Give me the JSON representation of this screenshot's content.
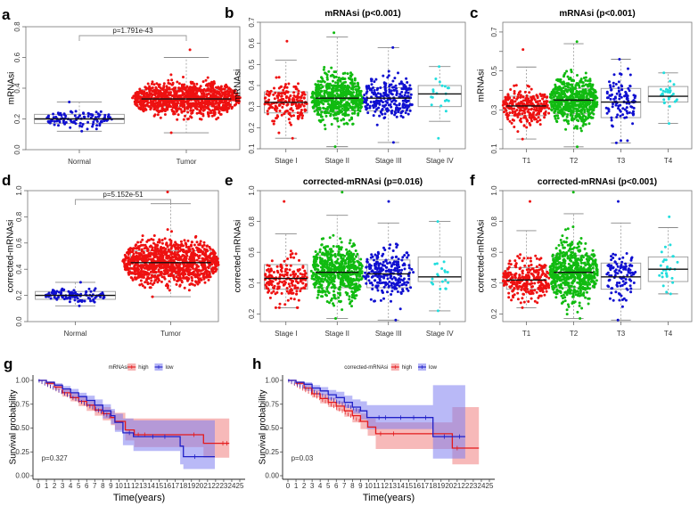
{
  "chart_data": [
    {
      "id": "a",
      "type": "beeswarm-boxplot",
      "panel_label": "a",
      "title": "",
      "ylabel": "mRNAsi",
      "ylim": [
        0.0,
        0.8
      ],
      "yticks": [
        0.0,
        0.2,
        0.4,
        0.6,
        0.8
      ],
      "ytick_labels": [
        "0.0",
        "0.2",
        "0.4",
        "0.6",
        "0.8"
      ],
      "categories": [
        "Normal",
        "Tumor"
      ],
      "annotation": "p=1.791e-43",
      "colors": [
        "#1010d0",
        "#ee1111"
      ],
      "groups": [
        {
          "name": "Normal",
          "n": 110,
          "min": 0.12,
          "q1": 0.17,
          "median": 0.2,
          "q3": 0.23,
          "max": 0.31,
          "whisker_low": 0.12,
          "whisker_high": 0.31
        },
        {
          "name": "Tumor",
          "n": 1100,
          "min": 0.11,
          "q1": 0.28,
          "median": 0.33,
          "q3": 0.39,
          "max": 0.65,
          "whisker_low": 0.11,
          "whisker_high": 0.6
        }
      ]
    },
    {
      "id": "b",
      "type": "beeswarm-boxplot",
      "panel_label": "b",
      "title": "mRNAsi (p<0.001)",
      "ylabel": "mRNAsi",
      "ylim": [
        0.1,
        0.7
      ],
      "yticks": [
        0.1,
        0.2,
        0.3,
        0.4,
        0.5,
        0.6,
        0.7
      ],
      "ytick_labels": [
        "0.1",
        "0.2",
        "0.3",
        "0.4",
        "0.5",
        "0.6",
        "0.7"
      ],
      "categories": [
        "Stage I",
        "Stage II",
        "Stage III",
        "Stage IV"
      ],
      "colors": [
        "#ee1111",
        "#11bb11",
        "#1010d0",
        "#22dddd"
      ],
      "groups": [
        {
          "name": "Stage I",
          "n": 190,
          "min": 0.15,
          "q1": 0.27,
          "median": 0.32,
          "q3": 0.37,
          "max": 0.61,
          "whisker_low": 0.15,
          "whisker_high": 0.52
        },
        {
          "name": "Stage II",
          "n": 600,
          "min": 0.11,
          "q1": 0.28,
          "median": 0.34,
          "q3": 0.4,
          "max": 0.65,
          "whisker_low": 0.11,
          "whisker_high": 0.63
        },
        {
          "name": "Stage III",
          "n": 250,
          "min": 0.13,
          "q1": 0.28,
          "median": 0.34,
          "q3": 0.39,
          "max": 0.58,
          "whisker_low": 0.13,
          "whisker_high": 0.58
        },
        {
          "name": "Stage IV",
          "n": 20,
          "min": 0.15,
          "q1": 0.3,
          "median": 0.36,
          "q3": 0.4,
          "max": 0.49,
          "whisker_low": 0.23,
          "whisker_high": 0.49
        }
      ]
    },
    {
      "id": "c",
      "type": "beeswarm-boxplot",
      "panel_label": "c",
      "title": "mRNAsi (p<0.001)",
      "ylabel": "mRNAsi",
      "ylim": [
        0.1,
        0.75
      ],
      "yticks": [
        0.1,
        0.2,
        0.3,
        0.4,
        0.5,
        0.6,
        0.7
      ],
      "ytick_labels": [
        "0.1",
        "",
        "0.3",
        "",
        "0.5",
        "",
        "0.7"
      ],
      "categories": [
        "T1",
        "T2",
        "T3",
        "T4"
      ],
      "colors": [
        "#ee1111",
        "#11bb11",
        "#1010d0",
        "#22dddd"
      ],
      "groups": [
        {
          "name": "T1",
          "n": 290,
          "min": 0.15,
          "q1": 0.27,
          "median": 0.32,
          "q3": 0.37,
          "max": 0.61,
          "whisker_low": 0.15,
          "whisker_high": 0.52
        },
        {
          "name": "T2",
          "n": 620,
          "min": 0.11,
          "q1": 0.28,
          "median": 0.35,
          "q3": 0.41,
          "max": 0.65,
          "whisker_low": 0.11,
          "whisker_high": 0.64
        },
        {
          "name": "T3",
          "n": 110,
          "min": 0.13,
          "q1": 0.26,
          "median": 0.34,
          "q3": 0.41,
          "max": 0.56,
          "whisker_low": 0.13,
          "whisker_high": 0.56
        },
        {
          "name": "T4",
          "n": 30,
          "min": 0.23,
          "q1": 0.34,
          "median": 0.37,
          "q3": 0.42,
          "max": 0.49,
          "whisker_low": 0.23,
          "whisker_high": 0.49
        }
      ]
    },
    {
      "id": "d",
      "type": "beeswarm-boxplot",
      "panel_label": "d",
      "title": "",
      "ylabel": "corrected-mRNAsi",
      "ylim": [
        0.0,
        1.0
      ],
      "yticks": [
        0.0,
        0.2,
        0.4,
        0.6,
        0.8,
        1.0
      ],
      "ytick_labels": [
        "0.0",
        "0.2",
        "0.4",
        "0.6",
        "0.8",
        "1.0"
      ],
      "categories": [
        "Normal",
        "Tumor"
      ],
      "annotation": "p=5.152e-51",
      "colors": [
        "#1010d0",
        "#ee1111"
      ],
      "groups": [
        {
          "name": "Normal",
          "n": 110,
          "min": 0.12,
          "q1": 0.17,
          "median": 0.2,
          "q3": 0.23,
          "max": 0.3,
          "whisker_low": 0.12,
          "whisker_high": 0.3
        },
        {
          "name": "Tumor",
          "n": 1100,
          "min": 0.19,
          "q1": 0.36,
          "median": 0.45,
          "q3": 0.54,
          "max": 0.99,
          "whisker_low": 0.19,
          "whisker_high": 0.9
        }
      ]
    },
    {
      "id": "e",
      "type": "beeswarm-boxplot",
      "panel_label": "e",
      "title": "corrected-mRNAsi (p=0.016)",
      "ylabel": "corrected-mRNAsi",
      "ylim": [
        0.15,
        1.0
      ],
      "yticks": [
        0.2,
        0.4,
        0.6,
        0.8,
        1.0
      ],
      "ytick_labels": [
        "0.2",
        "0.4",
        "0.6",
        "0.8",
        "1.0"
      ],
      "categories": [
        "Stage I",
        "Stage II",
        "Stage III",
        "Stage IV"
      ],
      "colors": [
        "#ee1111",
        "#11bb11",
        "#1010d0",
        "#22dddd"
      ],
      "groups": [
        {
          "name": "Stage I",
          "n": 190,
          "min": 0.24,
          "q1": 0.36,
          "median": 0.43,
          "q3": 0.52,
          "max": 0.93,
          "whisker_low": 0.24,
          "whisker_high": 0.72
        },
        {
          "name": "Stage II",
          "n": 600,
          "min": 0.17,
          "q1": 0.37,
          "median": 0.47,
          "q3": 0.58,
          "max": 0.99,
          "whisker_low": 0.17,
          "whisker_high": 0.84
        },
        {
          "name": "Stage III",
          "n": 250,
          "min": 0.16,
          "q1": 0.37,
          "median": 0.46,
          "q3": 0.55,
          "max": 0.93,
          "whisker_low": 0.16,
          "whisker_high": 0.79
        },
        {
          "name": "Stage IV",
          "n": 20,
          "min": 0.22,
          "q1": 0.41,
          "median": 0.44,
          "q3": 0.57,
          "max": 0.8,
          "whisker_low": 0.22,
          "whisker_high": 0.8
        }
      ]
    },
    {
      "id": "f",
      "type": "beeswarm-boxplot",
      "panel_label": "f",
      "title": "corrected-mRNAsi (p<0.001)",
      "ylabel": "corrected-mRNAsi",
      "ylim": [
        0.15,
        1.0
      ],
      "yticks": [
        0.2,
        0.4,
        0.6,
        0.8,
        1.0
      ],
      "ytick_labels": [
        "0.2",
        "0.4",
        "0.6",
        "0.8",
        "1.0"
      ],
      "categories": [
        "T1",
        "T2",
        "T3",
        "T4"
      ],
      "colors": [
        "#ee1111",
        "#11bb11",
        "#1010d0",
        "#22dddd"
      ],
      "groups": [
        {
          "name": "T1",
          "n": 290,
          "min": 0.24,
          "q1": 0.36,
          "median": 0.42,
          "q3": 0.5,
          "max": 0.93,
          "whisker_low": 0.24,
          "whisker_high": 0.74
        },
        {
          "name": "T2",
          "n": 620,
          "min": 0.17,
          "q1": 0.37,
          "median": 0.47,
          "q3": 0.58,
          "max": 0.99,
          "whisker_low": 0.17,
          "whisker_high": 0.85
        },
        {
          "name": "T3",
          "n": 110,
          "min": 0.16,
          "q1": 0.36,
          "median": 0.44,
          "q3": 0.53,
          "max": 0.93,
          "whisker_low": 0.16,
          "whisker_high": 0.79
        },
        {
          "name": "T4",
          "n": 30,
          "min": 0.33,
          "q1": 0.41,
          "median": 0.49,
          "q3": 0.57,
          "max": 0.83,
          "whisker_low": 0.33,
          "whisker_high": 0.76
        }
      ]
    },
    {
      "id": "g",
      "type": "line",
      "subtype": "kaplan-meier",
      "panel_label": "g",
      "title": "",
      "xlabel": "Time(years)",
      "ylabel": "Survival probability",
      "xlim": [
        0,
        25
      ],
      "ylim": [
        0,
        1
      ],
      "xticks": [
        0,
        1,
        2,
        3,
        4,
        5,
        6,
        7,
        8,
        9,
        10,
        11,
        12,
        13,
        14,
        15,
        16,
        17,
        18,
        19,
        20,
        21,
        22,
        23,
        24,
        25
      ],
      "yticks": [
        0.0,
        0.25,
        0.5,
        0.75,
        1.0
      ],
      "ytick_labels": [
        "0.00",
        "0.25",
        "0.50",
        "0.75",
        "1.00"
      ],
      "legend": {
        "title": "mRNAsi",
        "position": "top",
        "entries": [
          "high",
          "low"
        ]
      },
      "annotation": "p=0.327",
      "series": [
        {
          "name": "high",
          "color": "#e41a1c",
          "band_color": "#f08080",
          "x": [
            0,
            1,
            2,
            3,
            4,
            5,
            6,
            7,
            8,
            9,
            9.5,
            10.8,
            11.9,
            20.5,
            23.7
          ],
          "y": [
            1.0,
            0.97,
            0.93,
            0.87,
            0.82,
            0.78,
            0.74,
            0.69,
            0.65,
            0.61,
            0.57,
            0.48,
            0.43,
            0.34,
            0.34
          ],
          "upper": [
            1.0,
            0.99,
            0.96,
            0.91,
            0.87,
            0.83,
            0.79,
            0.75,
            0.72,
            0.68,
            0.66,
            0.6,
            0.6,
            0.6,
            0.6
          ],
          "lower": [
            1.0,
            0.95,
            0.9,
            0.83,
            0.78,
            0.73,
            0.68,
            0.63,
            0.58,
            0.53,
            0.48,
            0.37,
            0.3,
            0.19,
            0.19
          ],
          "censor_x": [
            12.4,
            13.2,
            19.3,
            22.9,
            23.4
          ]
        },
        {
          "name": "low",
          "color": "#2020c8",
          "band_color": "#8080f0",
          "x": [
            0,
            1,
            2,
            3,
            4,
            5,
            6,
            7,
            8,
            9,
            9.5,
            10.5,
            11.8,
            17.6,
            18.0,
            21.9
          ],
          "y": [
            1.0,
            0.98,
            0.95,
            0.91,
            0.87,
            0.83,
            0.79,
            0.74,
            0.68,
            0.63,
            0.56,
            0.45,
            0.41,
            0.31,
            0.2,
            0.2
          ],
          "upper": [
            1.0,
            0.99,
            0.97,
            0.94,
            0.91,
            0.87,
            0.84,
            0.8,
            0.75,
            0.7,
            0.65,
            0.6,
            0.58,
            0.58,
            0.58,
            0.58
          ],
          "lower": [
            1.0,
            0.96,
            0.92,
            0.87,
            0.82,
            0.78,
            0.73,
            0.67,
            0.6,
            0.54,
            0.46,
            0.32,
            0.26,
            0.12,
            0.07,
            0.07
          ],
          "censor_x": [
            11.3,
            14.2,
            15.7,
            19.4
          ]
        }
      ]
    },
    {
      "id": "h",
      "type": "line",
      "subtype": "kaplan-meier",
      "panel_label": "h",
      "title": "",
      "xlabel": "Time(years)",
      "ylabel": "Survival probability",
      "xlim": [
        0,
        25
      ],
      "ylim": [
        0,
        1
      ],
      "xticks": [
        0,
        1,
        2,
        3,
        4,
        5,
        6,
        7,
        8,
        9,
        10,
        11,
        12,
        13,
        14,
        15,
        16,
        17,
        18,
        19,
        20,
        21,
        22,
        23,
        24,
        25
      ],
      "yticks": [
        0.0,
        0.25,
        0.5,
        0.75,
        1.0
      ],
      "ytick_labels": [
        "0.00",
        "0.25",
        "0.50",
        "0.75",
        "1.00"
      ],
      "legend": {
        "title": "corrected-mRNAsi",
        "position": "top",
        "entries": [
          "high",
          "low"
        ]
      },
      "annotation": "p=0.03",
      "series": [
        {
          "name": "high",
          "color": "#e41a1c",
          "band_color": "#f08080",
          "x": [
            0,
            1,
            2,
            3,
            4,
            5,
            6,
            7,
            8,
            9,
            9.9,
            10.9,
            20.4,
            23.7
          ],
          "y": [
            1.0,
            0.97,
            0.92,
            0.86,
            0.81,
            0.77,
            0.73,
            0.68,
            0.63,
            0.57,
            0.51,
            0.44,
            0.29,
            0.29
          ],
          "upper": [
            1.0,
            0.99,
            0.95,
            0.9,
            0.86,
            0.82,
            0.78,
            0.74,
            0.7,
            0.65,
            0.6,
            0.56,
            0.72,
            0.72
          ],
          "lower": [
            1.0,
            0.95,
            0.89,
            0.82,
            0.76,
            0.72,
            0.68,
            0.62,
            0.56,
            0.49,
            0.42,
            0.28,
            0.12,
            0.12
          ],
          "censor_x": [
            11.5,
            13.1,
            21.0
          ]
        },
        {
          "name": "low",
          "color": "#2020c8",
          "band_color": "#8080f0",
          "x": [
            0,
            1,
            2,
            3,
            4,
            5,
            6,
            7,
            8,
            9,
            9.8,
            18.0,
            22.0
          ],
          "y": [
            1.0,
            0.98,
            0.96,
            0.92,
            0.89,
            0.85,
            0.82,
            0.77,
            0.72,
            0.68,
            0.61,
            0.41,
            0.41
          ],
          "upper": [
            1.0,
            0.99,
            0.98,
            0.95,
            0.93,
            0.9,
            0.88,
            0.84,
            0.8,
            0.78,
            0.74,
            0.95,
            0.95
          ],
          "lower": [
            1.0,
            0.96,
            0.93,
            0.89,
            0.85,
            0.8,
            0.76,
            0.71,
            0.65,
            0.59,
            0.49,
            0.18,
            0.18
          ],
          "censor_x": [
            11.3,
            12.1,
            14.0,
            15.6,
            17.1,
            19.4,
            21.3
          ]
        }
      ]
    }
  ]
}
